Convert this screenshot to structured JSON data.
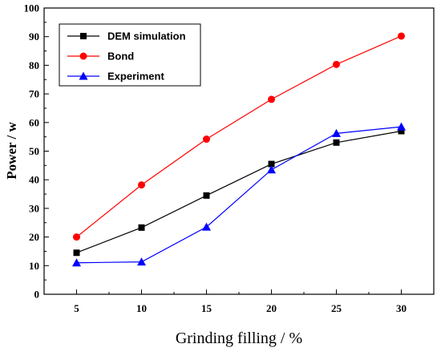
{
  "chart_data": {
    "type": "line",
    "xlabel": "Grinding filling / %",
    "ylabel": "Power / w",
    "xlim": [
      2.5,
      32.5
    ],
    "ylim": [
      0,
      100
    ],
    "x": [
      5,
      10,
      15,
      20,
      25,
      30
    ],
    "xticks": [
      "5",
      "10",
      "15",
      "20",
      "25",
      "30"
    ],
    "yticks": [
      "0",
      "10",
      "20",
      "30",
      "40",
      "50",
      "60",
      "70",
      "80",
      "90",
      "100"
    ],
    "legend_position": "top-left",
    "grid": false,
    "series": [
      {
        "name": "DEM simulation",
        "color": "#000000",
        "marker": "square",
        "values": [
          14.5,
          23.3,
          34.5,
          45.5,
          53.0,
          57.0
        ]
      },
      {
        "name": "Bond",
        "color": "#ff0000",
        "marker": "circle",
        "values": [
          20.0,
          38.2,
          54.2,
          68.1,
          80.3,
          90.2
        ]
      },
      {
        "name": "Experiment",
        "color": "#0000ff",
        "marker": "triangle",
        "values": [
          11.0,
          11.3,
          23.5,
          43.5,
          56.2,
          58.5
        ]
      }
    ]
  }
}
